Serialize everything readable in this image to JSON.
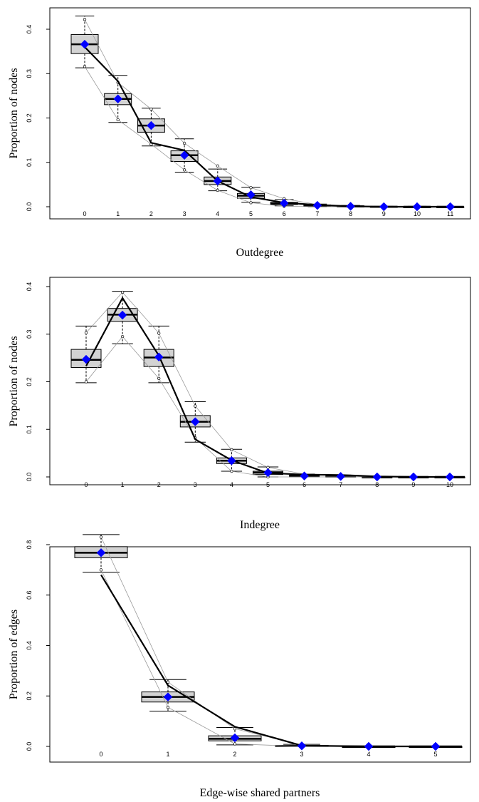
{
  "colors": {
    "box_fill": "#d3d3d3",
    "mean_marker": "#0000ff",
    "observed_line": "#000000",
    "sim_bounds_line": "#9a9a9a"
  },
  "chart_data": [
    {
      "type": "boxplot",
      "xlabel": "Outdegree",
      "ylabel": "Proportion of nodes",
      "categories": [
        "0",
        "1",
        "2",
        "3",
        "4",
        "5",
        "6",
        "7",
        "8",
        "9",
        "10",
        "11"
      ],
      "ylim": [
        0,
        0.42
      ],
      "yticks": [
        "0.0",
        "0.1",
        "0.2",
        "0.3",
        "0.4"
      ],
      "ytick_values": [
        0,
        0.1,
        0.2,
        0.3,
        0.4
      ],
      "grid": false,
      "boxes": [
        {
          "whisker_low": 0.313,
          "q1": 0.345,
          "median": 0.366,
          "q3": 0.388,
          "whisker_high": 0.43,
          "outliers": []
        },
        {
          "whisker_low": 0.19,
          "q1": 0.23,
          "median": 0.243,
          "q3": 0.255,
          "whisker_high": 0.296,
          "outliers": []
        },
        {
          "whisker_low": 0.137,
          "q1": 0.168,
          "median": 0.183,
          "q3": 0.198,
          "whisker_high": 0.222,
          "outliers": []
        },
        {
          "whisker_low": 0.078,
          "q1": 0.102,
          "median": 0.116,
          "q3": 0.126,
          "whisker_high": 0.153,
          "outliers": []
        },
        {
          "whisker_low": 0.036,
          "q1": 0.05,
          "median": 0.058,
          "q3": 0.067,
          "whisker_high": 0.085,
          "outliers": []
        },
        {
          "whisker_low": 0.01,
          "q1": 0.019,
          "median": 0.025,
          "q3": 0.03,
          "whisker_high": 0.044,
          "outliers": []
        },
        {
          "whisker_low": 0.002,
          "q1": 0.005,
          "median": 0.007,
          "q3": 0.01,
          "whisker_high": 0.016,
          "outliers": []
        },
        {
          "whisker_low": 0.0,
          "q1": 0.002,
          "median": 0.003,
          "q3": 0.004,
          "whisker_high": 0.006,
          "outliers": []
        },
        {
          "whisker_low": 0.0,
          "q1": 0.0,
          "median": 0.001,
          "q3": 0.002,
          "whisker_high": 0.003,
          "outliers": []
        },
        {
          "whisker_low": 0.0,
          "q1": 0.0,
          "median": 0.0,
          "q3": 0.001,
          "whisker_high": 0.001,
          "outliers": []
        },
        {
          "whisker_low": 0.0,
          "q1": 0.0,
          "median": 0.0,
          "q3": 0.0,
          "whisker_high": 0.001,
          "outliers": []
        },
        {
          "whisker_low": 0.0,
          "q1": 0.0,
          "median": 0.0,
          "q3": 0.0,
          "whisker_high": 0.0,
          "outliers": []
        }
      ],
      "observed": [
        0.36,
        0.283,
        0.144,
        0.127,
        0.058,
        0.022,
        0.009,
        0.004,
        0.001,
        0.0,
        0.0,
        0.0
      ],
      "means": [
        0.366,
        0.243,
        0.183,
        0.116,
        0.058,
        0.027,
        0.008,
        0.003,
        0.001,
        0.0,
        0.0,
        0.0
      ],
      "upper_bound": [
        0.422,
        0.28,
        0.22,
        0.143,
        0.092,
        0.043,
        0.018,
        0.005,
        0.002,
        0.001,
        0.0,
        0.0
      ],
      "lower_bound": [
        0.316,
        0.196,
        0.141,
        0.083,
        0.037,
        0.009,
        0.001,
        0.0,
        0.0,
        0.0,
        0.0,
        0.0
      ]
    },
    {
      "type": "boxplot",
      "xlabel": "Indegree",
      "ylabel": "Proportion of nodes",
      "categories": [
        "0",
        "1",
        "2",
        "3",
        "4",
        "5",
        "6",
        "7",
        "8",
        "9",
        "10"
      ],
      "ylim": [
        0,
        0.4
      ],
      "yticks": [
        "0.0",
        "0.1",
        "0.2",
        "0.3",
        "0.4"
      ],
      "ytick_values": [
        0,
        0.1,
        0.2,
        0.3,
        0.4
      ],
      "grid": false,
      "boxes": [
        {
          "whisker_low": 0.198,
          "q1": 0.23,
          "median": 0.246,
          "q3": 0.268,
          "whisker_high": 0.317,
          "outliers": []
        },
        {
          "whisker_low": 0.28,
          "q1": 0.327,
          "median": 0.341,
          "q3": 0.354,
          "whisker_high": 0.39,
          "outliers": []
        },
        {
          "whisker_low": 0.198,
          "q1": 0.232,
          "median": 0.251,
          "q3": 0.268,
          "whisker_high": 0.317,
          "outliers": []
        },
        {
          "whisker_low": 0.073,
          "q1": 0.105,
          "median": 0.116,
          "q3": 0.129,
          "whisker_high": 0.158,
          "outliers": []
        },
        {
          "whisker_low": 0.012,
          "q1": 0.028,
          "median": 0.034,
          "q3": 0.04,
          "whisker_high": 0.058,
          "outliers": []
        },
        {
          "whisker_low": 0.0,
          "q1": 0.005,
          "median": 0.009,
          "q3": 0.012,
          "whisker_high": 0.021,
          "outliers": []
        },
        {
          "whisker_low": 0.0,
          "q1": 0.0,
          "median": 0.002,
          "q3": 0.004,
          "whisker_high": 0.006,
          "outliers": []
        },
        {
          "whisker_low": 0.0,
          "q1": 0.0,
          "median": 0.001,
          "q3": 0.002,
          "whisker_high": 0.004,
          "outliers": []
        },
        {
          "whisker_low": 0.0,
          "q1": 0.0,
          "median": 0.0,
          "q3": 0.0,
          "whisker_high": 0.001,
          "outliers": []
        },
        {
          "whisker_low": 0.0,
          "q1": 0.0,
          "median": 0.0,
          "q3": 0.0,
          "whisker_high": 0.0,
          "outliers": []
        },
        {
          "whisker_low": 0.0,
          "q1": 0.0,
          "median": 0.0,
          "q3": 0.0,
          "whisker_high": 0.0,
          "outliers": []
        }
      ],
      "observed": [
        0.233,
        0.376,
        0.255,
        0.079,
        0.035,
        0.008,
        0.005,
        0.004,
        0.001,
        0.0,
        0.0
      ],
      "means": [
        0.247,
        0.34,
        0.252,
        0.116,
        0.034,
        0.009,
        0.002,
        0.001,
        0.0,
        0.0,
        0.0
      ],
      "upper_bound": [
        0.303,
        0.388,
        0.302,
        0.149,
        0.057,
        0.02,
        0.006,
        0.004,
        0.001,
        0.0,
        0.0
      ],
      "lower_bound": [
        0.2,
        0.295,
        0.207,
        0.082,
        0.012,
        0.0,
        0.0,
        0.0,
        0.0,
        0.0,
        0.0
      ]
    },
    {
      "type": "boxplot",
      "xlabel": "Edge-wise shared partners",
      "ylabel": "Proportion of edges",
      "categories": [
        "0",
        "1",
        "2",
        "3",
        "4",
        "5"
      ],
      "ylim": [
        0,
        0.85
      ],
      "yticks": [
        "0.0",
        "0.2",
        "0.4",
        "0.6",
        "0.8"
      ],
      "ytick_values": [
        0,
        0.2,
        0.4,
        0.6,
        0.8
      ],
      "grid": false,
      "boxes": [
        {
          "whisker_low": 0.69,
          "q1": 0.748,
          "median": 0.768,
          "q3": 0.792,
          "whisker_high": 0.84,
          "outliers": []
        },
        {
          "whisker_low": 0.14,
          "q1": 0.176,
          "median": 0.196,
          "q3": 0.216,
          "whisker_high": 0.265,
          "outliers": []
        },
        {
          "whisker_low": 0.006,
          "q1": 0.022,
          "median": 0.03,
          "q3": 0.042,
          "whisker_high": 0.075,
          "outliers": []
        },
        {
          "whisker_low": 0.0,
          "q1": 0.0,
          "median": 0.002,
          "q3": 0.004,
          "whisker_high": 0.008,
          "outliers": []
        },
        {
          "whisker_low": 0.0,
          "q1": 0.0,
          "median": 0.0,
          "q3": 0.0,
          "whisker_high": 0.001,
          "outliers": []
        },
        {
          "whisker_low": 0.0,
          "q1": 0.0,
          "median": 0.0,
          "q3": 0.0,
          "whisker_high": 0.0,
          "outliers": []
        }
      ],
      "observed": [
        0.68,
        0.242,
        0.078,
        0.003,
        0.0,
        0.0
      ],
      "means": [
        0.768,
        0.196,
        0.034,
        0.002,
        0.0,
        0.0
      ],
      "upper_bound": [
        0.83,
        0.255,
        0.07,
        0.005,
        0.0,
        0.0
      ],
      "lower_bound": [
        0.7,
        0.155,
        0.01,
        0.0,
        0.0,
        0.0
      ]
    }
  ]
}
